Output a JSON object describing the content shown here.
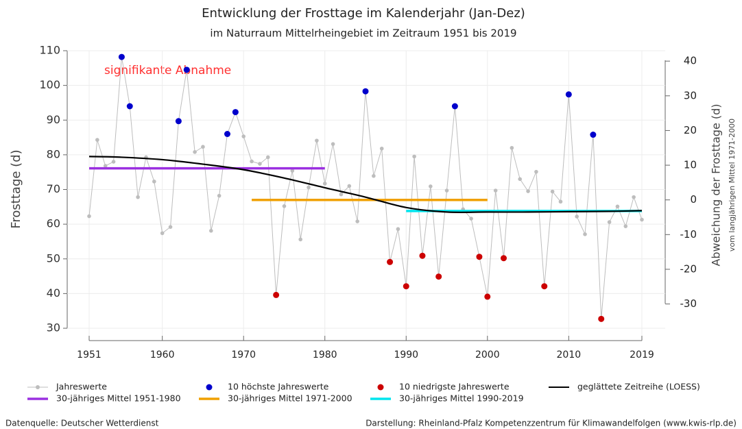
{
  "chart_data": {
    "type": "line",
    "title": "Entwicklung der Frosttage im Kalenderjahr (Jan-Dez)",
    "subtitle": "im Naturraum Mittelrheingebiet im Zeitraum 1951 bis 2019",
    "y_label": "Frosttage (d)",
    "y2_label": "Abweichung der Frosttage (d)",
    "y2_sublabel": "vom langjährigen Mittel 1971-2000",
    "annotation": "signifikante Abnahme",
    "source": "Datenquelle: Deutscher Wetterdienst",
    "credit": "Darstellung: Rheinland-Pfalz Kompetenzzentrum für Klimawandelfolgen (www.kwis-rlp.de)",
    "x": [
      1951,
      1952,
      1953,
      1954,
      1955,
      1956,
      1957,
      1958,
      1959,
      1960,
      1961,
      1962,
      1963,
      1964,
      1965,
      1966,
      1967,
      1968,
      1969,
      1970,
      1971,
      1972,
      1973,
      1974,
      1975,
      1976,
      1977,
      1978,
      1979,
      1980,
      1981,
      1982,
      1983,
      1984,
      1985,
      1986,
      1987,
      1988,
      1989,
      1990,
      1991,
      1992,
      1993,
      1994,
      1995,
      1996,
      1997,
      1998,
      1999,
      2000,
      2001,
      2002,
      2003,
      2004,
      2005,
      2006,
      2007,
      2008,
      2009,
      2010,
      2011,
      2012,
      2013,
      2014,
      2015,
      2016,
      2017,
      2018,
      2019
    ],
    "xlim": [
      1951,
      2019
    ],
    "xticks": [
      1951,
      1960,
      1970,
      1980,
      1990,
      2000,
      2010,
      2019
    ],
    "ylim": [
      30,
      110
    ],
    "yticks": [
      30,
      40,
      50,
      60,
      70,
      80,
      90,
      100,
      110
    ],
    "y2lim": [
      -37,
      43
    ],
    "y2ticks": [
      -30,
      -20,
      -10,
      0,
      10,
      20,
      30,
      40
    ],
    "grid": true,
    "series": [
      {
        "name": "Jahreswerte",
        "color": "#bdbdbd",
        "mark": "line-dots",
        "values": [
          62.3,
          84.3,
          76.8,
          78,
          108.2,
          94,
          67.8,
          79.3,
          72.3,
          57.4,
          59.2,
          89.7,
          104.5,
          80.8,
          82.3,
          58.1,
          68.2,
          86,
          92.3,
          85.3,
          78.1,
          77.4,
          79.3,
          39.6,
          65.2,
          75.4,
          55.6,
          70.6,
          84.1,
          71.7,
          83.1,
          68.6,
          71,
          60.8,
          98.3,
          73.9,
          81.8,
          49.1,
          58.6,
          42.1,
          79.5,
          50.9,
          70.9,
          44.9,
          69.7,
          94,
          64.3,
          61.6,
          50.6,
          39.1,
          69.7,
          50.2,
          82,
          73,
          69.5,
          75.1,
          42.1,
          69.4,
          66.5,
          97.4,
          62.2,
          57.1,
          85.8,
          32.7,
          60.6,
          65.1,
          59.4,
          67.8,
          61.3
        ]
      },
      {
        "name": "10 höchste Jahreswerte",
        "color": "#0000cc",
        "mark": "dots",
        "values": [
          null,
          null,
          null,
          null,
          108.2,
          94,
          null,
          null,
          null,
          null,
          null,
          89.7,
          104.5,
          null,
          null,
          null,
          null,
          86,
          92.3,
          null,
          null,
          null,
          null,
          null,
          null,
          null,
          null,
          null,
          null,
          null,
          null,
          null,
          null,
          null,
          98.3,
          null,
          null,
          null,
          null,
          null,
          null,
          null,
          null,
          null,
          null,
          94,
          null,
          null,
          null,
          null,
          null,
          null,
          null,
          null,
          null,
          null,
          null,
          null,
          null,
          97.4,
          null,
          null,
          85.8,
          null,
          null,
          null,
          null,
          null,
          null
        ]
      },
      {
        "name": "10 niedrigste Jahreswerte",
        "color": "#cc0000",
        "mark": "dots",
        "values": [
          null,
          null,
          null,
          null,
          null,
          null,
          null,
          null,
          null,
          null,
          null,
          null,
          null,
          null,
          null,
          null,
          null,
          null,
          null,
          null,
          null,
          null,
          null,
          39.6,
          null,
          null,
          null,
          null,
          null,
          null,
          null,
          null,
          null,
          null,
          null,
          null,
          null,
          49.1,
          null,
          42.1,
          null,
          50.9,
          null,
          44.9,
          null,
          null,
          null,
          null,
          50.6,
          39.1,
          null,
          50.2,
          null,
          null,
          null,
          null,
          42.1,
          null,
          null,
          null,
          null,
          null,
          null,
          32.7,
          null,
          null,
          null,
          null,
          null
        ]
      },
      {
        "name": "geglättete Zeitreihe (LOESS)",
        "color": "#000000",
        "mark": "smooth",
        "x": [
          1951,
          1955,
          1960,
          1965,
          1970,
          1975,
          1980,
          1985,
          1990,
          1995,
          2000,
          2005,
          2010,
          2015,
          2019
        ],
        "values": [
          79.5,
          79.3,
          78.6,
          77.3,
          75.7,
          73.3,
          70.5,
          67.8,
          64.8,
          63.5,
          63.5,
          63.5,
          63.6,
          63.7,
          63.9
        ]
      },
      {
        "name": "30-jähriges Mittel 1951-1980",
        "color": "#9b30e0",
        "mark": "mean",
        "x": [
          1951,
          1980
        ],
        "values": [
          76.1,
          76.1
        ]
      },
      {
        "name": "30-jähriges Mittel 1971-2000",
        "color": "#f0a000",
        "mark": "mean",
        "x": [
          1971,
          2000
        ],
        "values": [
          67,
          67
        ]
      },
      {
        "name": "30-jähriges Mittel 1990-2019",
        "color": "#00e5ee",
        "mark": "mean",
        "x": [
          1990,
          2019
        ],
        "values": [
          63.8,
          63.8
        ]
      }
    ]
  }
}
